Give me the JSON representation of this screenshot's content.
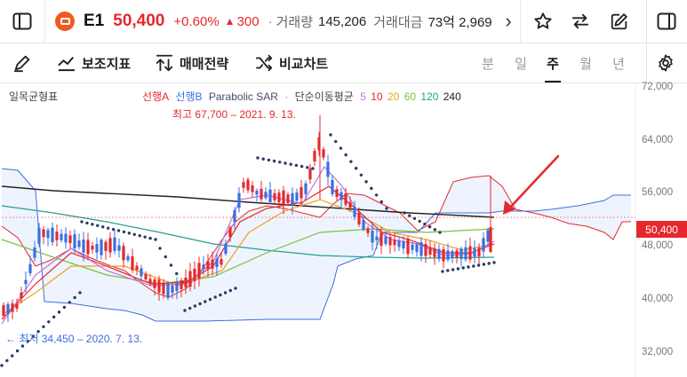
{
  "header": {
    "symbol": "E1",
    "price": "50,400",
    "change_pct": "+0.60%",
    "change_arrow": "▲",
    "change_amount": "300",
    "separator": "·",
    "volume_label": "거래량",
    "volume_value": "145,206",
    "turnover_label": "거래대금",
    "turnover_value": "73억 2,969",
    "more_chevron": "›"
  },
  "toolbar": {
    "indicators_label": "보조지표",
    "strategy_label": "매매전략",
    "compare_label": "비교차트",
    "periods": [
      "분",
      "일",
      "주",
      "월",
      "년"
    ],
    "active_period": "주"
  },
  "chart": {
    "indicator_name": "일목균형표",
    "legend": {
      "span_a": "선행A",
      "span_b": "선행B",
      "sar": "Parabolic SAR",
      "sep": "·",
      "ma_label": "단순이동평균",
      "ma_periods": [
        "5",
        "10",
        "20",
        "60",
        "120",
        "240"
      ]
    },
    "high_annotation": "최고 67,700 – 2021. 9. 13.",
    "low_annotation": "← 최저 34,450 – 2020. 7. 13.",
    "y_ticks": [
      "72,000",
      "64,000",
      "56,000",
      "48,000",
      "40,000",
      "32,000"
    ],
    "current_price_tag": "50,400"
  },
  "colors": {
    "up": "#e5282d",
    "down": "#3a6fe0",
    "span_a": "#e5282d",
    "span_b": "#3a6fe0",
    "sar": "#2d3a63",
    "ma5": "#c86fe0",
    "ma10": "#e5282d",
    "ma20": "#f0a020",
    "ma60": "#7ac143",
    "ma120": "#20a090",
    "ma240": "#222222"
  }
}
